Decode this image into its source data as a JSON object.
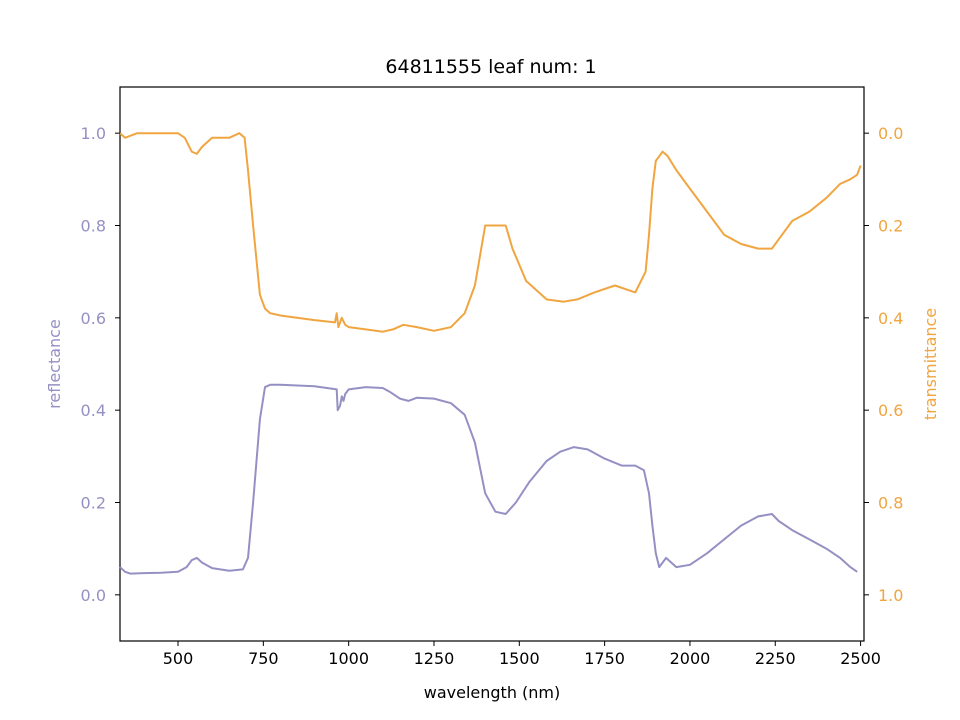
{
  "chart_data": {
    "type": "line",
    "title": "64811555 leaf num: 1",
    "xlabel": "wavelength (nm)",
    "ylabel_left": "reflectance",
    "ylabel_right": "transmittance",
    "xlim": [
      330,
      2510
    ],
    "ylim_left": [
      -0.1,
      1.1
    ],
    "ylim_right_inverted": [
      1.1,
      -0.1
    ],
    "x_ticks": [
      500,
      750,
      1000,
      1250,
      1500,
      1750,
      2000,
      2250,
      2500
    ],
    "y_left_ticks": [
      0.0,
      0.2,
      0.4,
      0.6,
      0.8,
      1.0
    ],
    "y_right_ticks": [
      0.0,
      0.2,
      0.4,
      0.6,
      0.8,
      1.0
    ],
    "colors": {
      "reflectance": "#9590c4",
      "transmittance": "#f0a540",
      "left_axis": "#9590c4",
      "right_axis": "#f0a540"
    },
    "grid": false,
    "series": [
      {
        "name": "reflectance",
        "axis": "left",
        "x": [
          330,
          345,
          360,
          400,
          450,
          500,
          525,
          540,
          555,
          570,
          600,
          650,
          690,
          705,
          720,
          740,
          755,
          770,
          800,
          900,
          965,
          968,
          975,
          980,
          985,
          990,
          1000,
          1020,
          1050,
          1100,
          1120,
          1150,
          1175,
          1200,
          1250,
          1300,
          1340,
          1370,
          1400,
          1430,
          1460,
          1490,
          1530,
          1580,
          1620,
          1660,
          1700,
          1750,
          1800,
          1840,
          1865,
          1880,
          1890,
          1900,
          1910,
          1930,
          1960,
          2000,
          2050,
          2100,
          2150,
          2200,
          2240,
          2260,
          2300,
          2350,
          2400,
          2440,
          2470,
          2490
        ],
        "y": [
          0.06,
          0.05,
          0.046,
          0.047,
          0.048,
          0.05,
          0.06,
          0.075,
          0.08,
          0.07,
          0.058,
          0.052,
          0.055,
          0.08,
          0.2,
          0.38,
          0.45,
          0.455,
          0.455,
          0.452,
          0.445,
          0.4,
          0.41,
          0.43,
          0.42,
          0.435,
          0.445,
          0.447,
          0.45,
          0.448,
          0.44,
          0.425,
          0.42,
          0.427,
          0.425,
          0.415,
          0.39,
          0.33,
          0.22,
          0.18,
          0.175,
          0.2,
          0.245,
          0.29,
          0.31,
          0.32,
          0.315,
          0.295,
          0.28,
          0.28,
          0.27,
          0.22,
          0.15,
          0.09,
          0.06,
          0.08,
          0.06,
          0.065,
          0.09,
          0.12,
          0.15,
          0.17,
          0.175,
          0.16,
          0.14,
          0.12,
          0.1,
          0.08,
          0.06,
          0.05
        ]
      },
      {
        "name": "transmittance",
        "axis": "right",
        "x": [
          330,
          345,
          380,
          450,
          500,
          520,
          540,
          555,
          570,
          600,
          650,
          680,
          695,
          705,
          720,
          740,
          755,
          770,
          800,
          900,
          960,
          965,
          970,
          980,
          990,
          1000,
          1050,
          1100,
          1130,
          1160,
          1200,
          1250,
          1300,
          1340,
          1370,
          1400,
          1420,
          1440,
          1460,
          1480,
          1520,
          1580,
          1630,
          1670,
          1720,
          1780,
          1840,
          1870,
          1880,
          1890,
          1900,
          1910,
          1920,
          1935,
          1960,
          2000,
          2050,
          2100,
          2150,
          2200,
          2240,
          2260,
          2300,
          2350,
          2400,
          2440,
          2470,
          2490,
          2500
        ],
        "y": [
          0.0,
          0.01,
          0.0,
          0.0,
          0.0,
          0.01,
          0.04,
          0.045,
          0.03,
          0.01,
          0.01,
          0.0,
          0.01,
          0.08,
          0.2,
          0.35,
          0.38,
          0.39,
          0.395,
          0.405,
          0.41,
          0.39,
          0.42,
          0.4,
          0.415,
          0.42,
          0.425,
          0.43,
          0.425,
          0.415,
          0.42,
          0.428,
          0.42,
          0.39,
          0.33,
          0.2,
          0.2,
          0.2,
          0.2,
          0.25,
          0.32,
          0.36,
          0.365,
          0.36,
          0.345,
          0.33,
          0.345,
          0.3,
          0.22,
          0.12,
          0.06,
          0.05,
          0.04,
          0.05,
          0.08,
          0.12,
          0.17,
          0.22,
          0.24,
          0.25,
          0.25,
          0.23,
          0.19,
          0.17,
          0.14,
          0.11,
          0.1,
          0.09,
          0.07
        ]
      }
    ]
  }
}
